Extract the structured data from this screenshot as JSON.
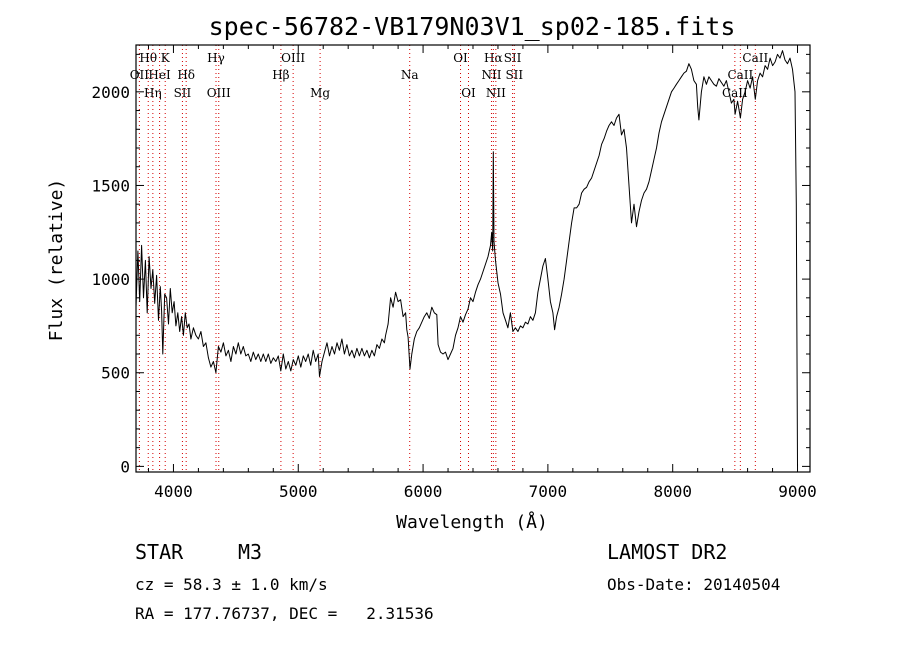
{
  "chart_data": {
    "type": "line",
    "title": "spec-56782-VB179N03V1_sp02-185.fits",
    "xlabel": "Wavelength (Å)",
    "ylabel": "Flux (relative)",
    "xlim": [
      3700,
      9100
    ],
    "ylim": [
      -30,
      2250
    ],
    "xticks": [
      4000,
      5000,
      6000,
      7000,
      8000,
      9000
    ],
    "yticks": [
      0,
      500,
      1000,
      1500,
      2000
    ],
    "grid": false,
    "series": [
      {
        "points": [
          [
            3700,
            850
          ],
          [
            3715,
            1150
          ],
          [
            3730,
            880
          ],
          [
            3745,
            1180
          ],
          [
            3760,
            900
          ],
          [
            3775,
            1100
          ],
          [
            3790,
            820
          ],
          [
            3805,
            1120
          ],
          [
            3820,
            950
          ],
          [
            3835,
            1050
          ],
          [
            3850,
            870
          ],
          [
            3865,
            1020
          ],
          [
            3880,
            780
          ],
          [
            3895,
            960
          ],
          [
            3905,
            830
          ],
          [
            3915,
            600
          ],
          [
            3930,
            920
          ],
          [
            3945,
            900
          ],
          [
            3960,
            760
          ],
          [
            3975,
            950
          ],
          [
            3990,
            820
          ],
          [
            4005,
            880
          ],
          [
            4020,
            750
          ],
          [
            4035,
            820
          ],
          [
            4050,
            720
          ],
          [
            4065,
            800
          ],
          [
            4080,
            700
          ],
          [
            4095,
            820
          ],
          [
            4110,
            740
          ],
          [
            4125,
            760
          ],
          [
            4140,
            680
          ],
          [
            4160,
            740
          ],
          [
            4180,
            700
          ],
          [
            4200,
            680
          ],
          [
            4220,
            720
          ],
          [
            4240,
            640
          ],
          [
            4260,
            660
          ],
          [
            4280,
            580
          ],
          [
            4300,
            530
          ],
          [
            4320,
            560
          ],
          [
            4340,
            500
          ],
          [
            4360,
            640
          ],
          [
            4380,
            610
          ],
          [
            4400,
            660
          ],
          [
            4420,
            590
          ],
          [
            4440,
            620
          ],
          [
            4460,
            560
          ],
          [
            4480,
            640
          ],
          [
            4500,
            600
          ],
          [
            4520,
            660
          ],
          [
            4540,
            600
          ],
          [
            4560,
            640
          ],
          [
            4580,
            590
          ],
          [
            4600,
            600
          ],
          [
            4620,
            560
          ],
          [
            4640,
            610
          ],
          [
            4660,
            570
          ],
          [
            4680,
            600
          ],
          [
            4700,
            560
          ],
          [
            4720,
            600
          ],
          [
            4740,
            560
          ],
          [
            4760,
            600
          ],
          [
            4780,
            550
          ],
          [
            4800,
            580
          ],
          [
            4820,
            560
          ],
          [
            4840,
            590
          ],
          [
            4860,
            510
          ],
          [
            4880,
            600
          ],
          [
            4900,
            520
          ],
          [
            4920,
            560
          ],
          [
            4940,
            510
          ],
          [
            4960,
            570
          ],
          [
            4980,
            540
          ],
          [
            5000,
            590
          ],
          [
            5020,
            530
          ],
          [
            5040,
            590
          ],
          [
            5060,
            560
          ],
          [
            5080,
            600
          ],
          [
            5100,
            540
          ],
          [
            5120,
            620
          ],
          [
            5140,
            560
          ],
          [
            5160,
            600
          ],
          [
            5170,
            480
          ],
          [
            5190,
            560
          ],
          [
            5210,
            610
          ],
          [
            5230,
            660
          ],
          [
            5250,
            590
          ],
          [
            5270,
            640
          ],
          [
            5290,
            600
          ],
          [
            5310,
            660
          ],
          [
            5330,
            620
          ],
          [
            5350,
            680
          ],
          [
            5370,
            600
          ],
          [
            5390,
            650
          ],
          [
            5410,
            590
          ],
          [
            5430,
            620
          ],
          [
            5450,
            580
          ],
          [
            5470,
            630
          ],
          [
            5490,
            590
          ],
          [
            5510,
            630
          ],
          [
            5530,
            590
          ],
          [
            5550,
            620
          ],
          [
            5570,
            580
          ],
          [
            5590,
            620
          ],
          [
            5610,
            590
          ],
          [
            5630,
            650
          ],
          [
            5650,
            630
          ],
          [
            5670,
            680
          ],
          [
            5690,
            660
          ],
          [
            5700,
            700
          ],
          [
            5720,
            760
          ],
          [
            5740,
            900
          ],
          [
            5760,
            850
          ],
          [
            5780,
            930
          ],
          [
            5800,
            880
          ],
          [
            5820,
            890
          ],
          [
            5840,
            800
          ],
          [
            5860,
            820
          ],
          [
            5870,
            730
          ],
          [
            5880,
            690
          ],
          [
            5895,
            520
          ],
          [
            5910,
            600
          ],
          [
            5930,
            680
          ],
          [
            5950,
            720
          ],
          [
            5970,
            740
          ],
          [
            5990,
            770
          ],
          [
            6010,
            800
          ],
          [
            6030,
            820
          ],
          [
            6050,
            790
          ],
          [
            6070,
            850
          ],
          [
            6090,
            820
          ],
          [
            6110,
            810
          ],
          [
            6120,
            650
          ],
          [
            6140,
            610
          ],
          [
            6160,
            600
          ],
          [
            6180,
            610
          ],
          [
            6200,
            570
          ],
          [
            6220,
            600
          ],
          [
            6240,
            630
          ],
          [
            6260,
            700
          ],
          [
            6280,
            740
          ],
          [
            6300,
            800
          ],
          [
            6320,
            770
          ],
          [
            6340,
            810
          ],
          [
            6360,
            840
          ],
          [
            6380,
            900
          ],
          [
            6400,
            880
          ],
          [
            6420,
            930
          ],
          [
            6440,
            970
          ],
          [
            6460,
            1000
          ],
          [
            6480,
            1040
          ],
          [
            6500,
            1080
          ],
          [
            6520,
            1120
          ],
          [
            6540,
            1180
          ],
          [
            6550,
            1250
          ],
          [
            6558,
            1150
          ],
          [
            6563,
            1680
          ],
          [
            6568,
            1200
          ],
          [
            6580,
            1100
          ],
          [
            6600,
            980
          ],
          [
            6620,
            920
          ],
          [
            6640,
            820
          ],
          [
            6660,
            780
          ],
          [
            6680,
            740
          ],
          [
            6700,
            820
          ],
          [
            6720,
            720
          ],
          [
            6740,
            740
          ],
          [
            6760,
            720
          ],
          [
            6780,
            750
          ],
          [
            6800,
            740
          ],
          [
            6820,
            770
          ],
          [
            6840,
            760
          ],
          [
            6860,
            800
          ],
          [
            6880,
            780
          ],
          [
            6900,
            820
          ],
          [
            6920,
            930
          ],
          [
            6940,
            1000
          ],
          [
            6960,
            1070
          ],
          [
            6980,
            1110
          ],
          [
            7000,
            1000
          ],
          [
            7020,
            880
          ],
          [
            7040,
            820
          ],
          [
            7054,
            730
          ],
          [
            7070,
            800
          ],
          [
            7090,
            850
          ],
          [
            7110,
            920
          ],
          [
            7130,
            1000
          ],
          [
            7150,
            1100
          ],
          [
            7170,
            1200
          ],
          [
            7190,
            1300
          ],
          [
            7210,
            1380
          ],
          [
            7230,
            1380
          ],
          [
            7250,
            1400
          ],
          [
            7270,
            1460
          ],
          [
            7290,
            1480
          ],
          [
            7310,
            1490
          ],
          [
            7330,
            1520
          ],
          [
            7350,
            1540
          ],
          [
            7370,
            1580
          ],
          [
            7390,
            1620
          ],
          [
            7410,
            1660
          ],
          [
            7430,
            1720
          ],
          [
            7450,
            1750
          ],
          [
            7470,
            1790
          ],
          [
            7490,
            1820
          ],
          [
            7510,
            1840
          ],
          [
            7530,
            1820
          ],
          [
            7550,
            1860
          ],
          [
            7570,
            1880
          ],
          [
            7590,
            1770
          ],
          [
            7610,
            1800
          ],
          [
            7630,
            1700
          ],
          [
            7650,
            1500
          ],
          [
            7670,
            1300
          ],
          [
            7690,
            1400
          ],
          [
            7710,
            1280
          ],
          [
            7730,
            1360
          ],
          [
            7750,
            1420
          ],
          [
            7770,
            1460
          ],
          [
            7790,
            1480
          ],
          [
            7810,
            1520
          ],
          [
            7830,
            1580
          ],
          [
            7850,
            1640
          ],
          [
            7870,
            1700
          ],
          [
            7890,
            1780
          ],
          [
            7910,
            1840
          ],
          [
            7930,
            1880
          ],
          [
            7950,
            1920
          ],
          [
            7970,
            1960
          ],
          [
            7990,
            2000
          ],
          [
            8010,
            2020
          ],
          [
            8030,
            2040
          ],
          [
            8050,
            2060
          ],
          [
            8070,
            2080
          ],
          [
            8090,
            2100
          ],
          [
            8110,
            2110
          ],
          [
            8130,
            2150
          ],
          [
            8150,
            2120
          ],
          [
            8170,
            2060
          ],
          [
            8190,
            2040
          ],
          [
            8200,
            1920
          ],
          [
            8210,
            1850
          ],
          [
            8230,
            2000
          ],
          [
            8250,
            2080
          ],
          [
            8270,
            2040
          ],
          [
            8290,
            2080
          ],
          [
            8310,
            2060
          ],
          [
            8330,
            2040
          ],
          [
            8350,
            2030
          ],
          [
            8370,
            2070
          ],
          [
            8390,
            2050
          ],
          [
            8410,
            2030
          ],
          [
            8430,
            2060
          ],
          [
            8450,
            2000
          ],
          [
            8470,
            1940
          ],
          [
            8490,
            1960
          ],
          [
            8500,
            1880
          ],
          [
            8520,
            1950
          ],
          [
            8542,
            1860
          ],
          [
            8560,
            1960
          ],
          [
            8580,
            2000
          ],
          [
            8600,
            2060
          ],
          [
            8620,
            2020
          ],
          [
            8640,
            2080
          ],
          [
            8662,
            1960
          ],
          [
            8680,
            2060
          ],
          [
            8700,
            2100
          ],
          [
            8720,
            2080
          ],
          [
            8740,
            2140
          ],
          [
            8760,
            2120
          ],
          [
            8780,
            2180
          ],
          [
            8800,
            2140
          ],
          [
            8820,
            2160
          ],
          [
            8840,
            2200
          ],
          [
            8860,
            2180
          ],
          [
            8880,
            2220
          ],
          [
            8900,
            2170
          ],
          [
            8920,
            2150
          ],
          [
            8940,
            2180
          ],
          [
            8960,
            2120
          ],
          [
            8980,
            2000
          ],
          [
            8990,
            1400
          ],
          [
            9000,
            0
          ]
        ]
      }
    ],
    "lines": [
      {
        "label": "Hθ",
        "x": 3798,
        "row": 1
      },
      {
        "label": "OII",
        "x": 3727,
        "row": 2
      },
      {
        "label": "Hη",
        "x": 3835,
        "row": 3
      },
      {
        "label": "K",
        "x": 3934,
        "row": 1
      },
      {
        "label": "HeI",
        "x": 3889,
        "row": 2
      },
      {
        "label": "Hδ",
        "x": 4102,
        "row": 2
      },
      {
        "label": "SII",
        "x": 4072,
        "row": 3
      },
      {
        "label": "Hγ",
        "x": 4341,
        "row": 1
      },
      {
        "label": "OIII",
        "x": 4363,
        "row": 3
      },
      {
        "label": "OIII",
        "x": 4959,
        "row": 1
      },
      {
        "label": "Hβ",
        "x": 4861,
        "row": 2
      },
      {
        "label": "Mg",
        "x": 5175,
        "row": 3
      },
      {
        "label": "Na",
        "x": 5893,
        "row": 2
      },
      {
        "label": "OI",
        "x": 6300,
        "row": 1
      },
      {
        "label": "OI",
        "x": 6364,
        "row": 3
      },
      {
        "label": "Hα",
        "x": 6563,
        "row": 1
      },
      {
        "label": "NII",
        "x": 6548,
        "row": 2
      },
      {
        "label": "NII",
        "x": 6583,
        "row": 3
      },
      {
        "label": "SII",
        "x": 6717,
        "row": 1
      },
      {
        "label": "SII",
        "x": 6731,
        "row": 2
      },
      {
        "label": "CaII",
        "x": 8662,
        "row": 1
      },
      {
        "label": "CaII",
        "x": 8542,
        "row": 2
      },
      {
        "label": "CaII",
        "x": 8498,
        "row": 3
      }
    ]
  },
  "info": {
    "object_class": "STAR",
    "subclass": "M3",
    "survey": "LAMOST DR2",
    "redshift": "cz = 58.3 ± 1.0 km/s",
    "obs_date": "Obs-Date: 20140504",
    "coords": "RA = 177.76737, DEC =   2.31536"
  },
  "colors": {
    "marker_lines": "#d40000",
    "axis": "#000000",
    "spectrum": "#000000"
  }
}
